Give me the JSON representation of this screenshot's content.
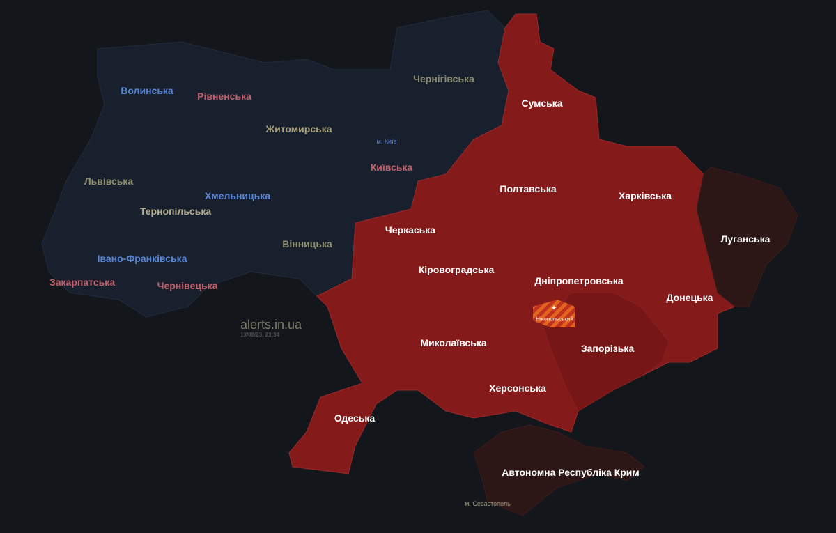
{
  "colors": {
    "background": "#13161b",
    "no_alert": "#18202e",
    "alert": "#851a1a",
    "alert_partial": "#761616",
    "occupied": "#2d1616",
    "district_alert_hatch": [
      "#e0651e",
      "#c0321e"
    ]
  },
  "legend_states": [
    "no_alert",
    "alert",
    "occupied"
  ],
  "watermark": {
    "site": "alerts.in.ua",
    "timestamp": "13/08/23, 23:34"
  },
  "regions": [
    {
      "name": "Волинська",
      "state": "no_alert",
      "color": "#5a86d6"
    },
    {
      "name": "Рівненська",
      "state": "no_alert",
      "color": "#c0606a"
    },
    {
      "name": "Житомирська",
      "state": "no_alert",
      "color": "#a9a27c"
    },
    {
      "name": "Чернігівська",
      "state": "no_alert",
      "color": "#8a8a72"
    },
    {
      "name": "м. Київ",
      "state": "no_alert",
      "color": "#5a86d6"
    },
    {
      "name": "Київська",
      "state": "no_alert",
      "color": "#c0606a"
    },
    {
      "name": "Львівська",
      "state": "no_alert",
      "color": "#8f8f6e"
    },
    {
      "name": "Тернопільська",
      "state": "no_alert",
      "color": "#b5ae8e"
    },
    {
      "name": "Хмельницька",
      "state": "no_alert",
      "color": "#5a86d6"
    },
    {
      "name": "Вінницька",
      "state": "no_alert",
      "color": "#8f8f6e"
    },
    {
      "name": "Івано-Франківська",
      "state": "no_alert",
      "color": "#5a86d6"
    },
    {
      "name": "Закарпатська",
      "state": "no_alert",
      "color": "#c0606a"
    },
    {
      "name": "Чернівецька",
      "state": "no_alert",
      "color": "#c0606a"
    },
    {
      "name": "Сумська",
      "state": "alert",
      "color": "#ffffff"
    },
    {
      "name": "Полтавська",
      "state": "alert",
      "color": "#ffffff"
    },
    {
      "name": "Харківська",
      "state": "alert",
      "color": "#ffffff"
    },
    {
      "name": "Черкаська",
      "state": "alert",
      "color": "#ffffff"
    },
    {
      "name": "Кіровоградська",
      "state": "alert",
      "color": "#ffffff"
    },
    {
      "name": "Дніпропетровська",
      "state": "alert",
      "color": "#ffffff"
    },
    {
      "name": "Донецька",
      "state": "alert",
      "color": "#ffffff"
    },
    {
      "name": "Миколаївська",
      "state": "alert",
      "color": "#ffffff"
    },
    {
      "name": "Запорізька",
      "state": "alert",
      "color": "#ffffff"
    },
    {
      "name": "Херсонська",
      "state": "alert",
      "color": "#ffffff"
    },
    {
      "name": "Одеська",
      "state": "alert",
      "color": "#ffffff"
    },
    {
      "name": "Луганська",
      "state": "occupied",
      "color": "#ffffff"
    },
    {
      "name": "Автономна Республіка Крим",
      "state": "occupied",
      "color": "#ffffff"
    },
    {
      "name": "м. Севастополь",
      "state": "occupied",
      "color": "#a09a80"
    }
  ],
  "districts": [
    {
      "name": "Нікопольський",
      "state": "alert",
      "icon": "artillery-icon"
    }
  ]
}
